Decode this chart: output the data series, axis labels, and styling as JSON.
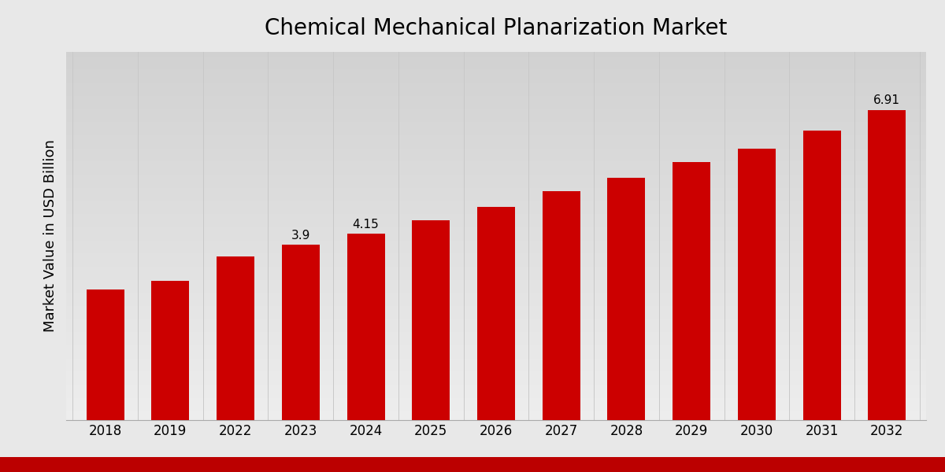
{
  "title": "Chemical Mechanical Planarization Market",
  "ylabel": "Market Value in USD Billion",
  "xlabel": "",
  "categories": [
    "2018",
    "2019",
    "2022",
    "2023",
    "2024",
    "2025",
    "2026",
    "2027",
    "2028",
    "2029",
    "2030",
    "2031",
    "2032"
  ],
  "values": [
    2.9,
    3.1,
    3.65,
    3.9,
    4.15,
    4.45,
    4.75,
    5.1,
    5.4,
    5.75,
    6.05,
    6.45,
    6.91
  ],
  "bar_color": "#cc0000",
  "annotated_bars": {
    "2023": "3.9",
    "2024": "4.15",
    "2032": "6.91"
  },
  "ylim": [
    0,
    8.2
  ],
  "title_fontsize": 20,
  "label_fontsize": 13,
  "tick_fontsize": 12,
  "annotation_fontsize": 11,
  "grid_color": "#c8c8c8",
  "bottom_bar_color": "#bb0000",
  "bottom_bar_height": 0.03
}
